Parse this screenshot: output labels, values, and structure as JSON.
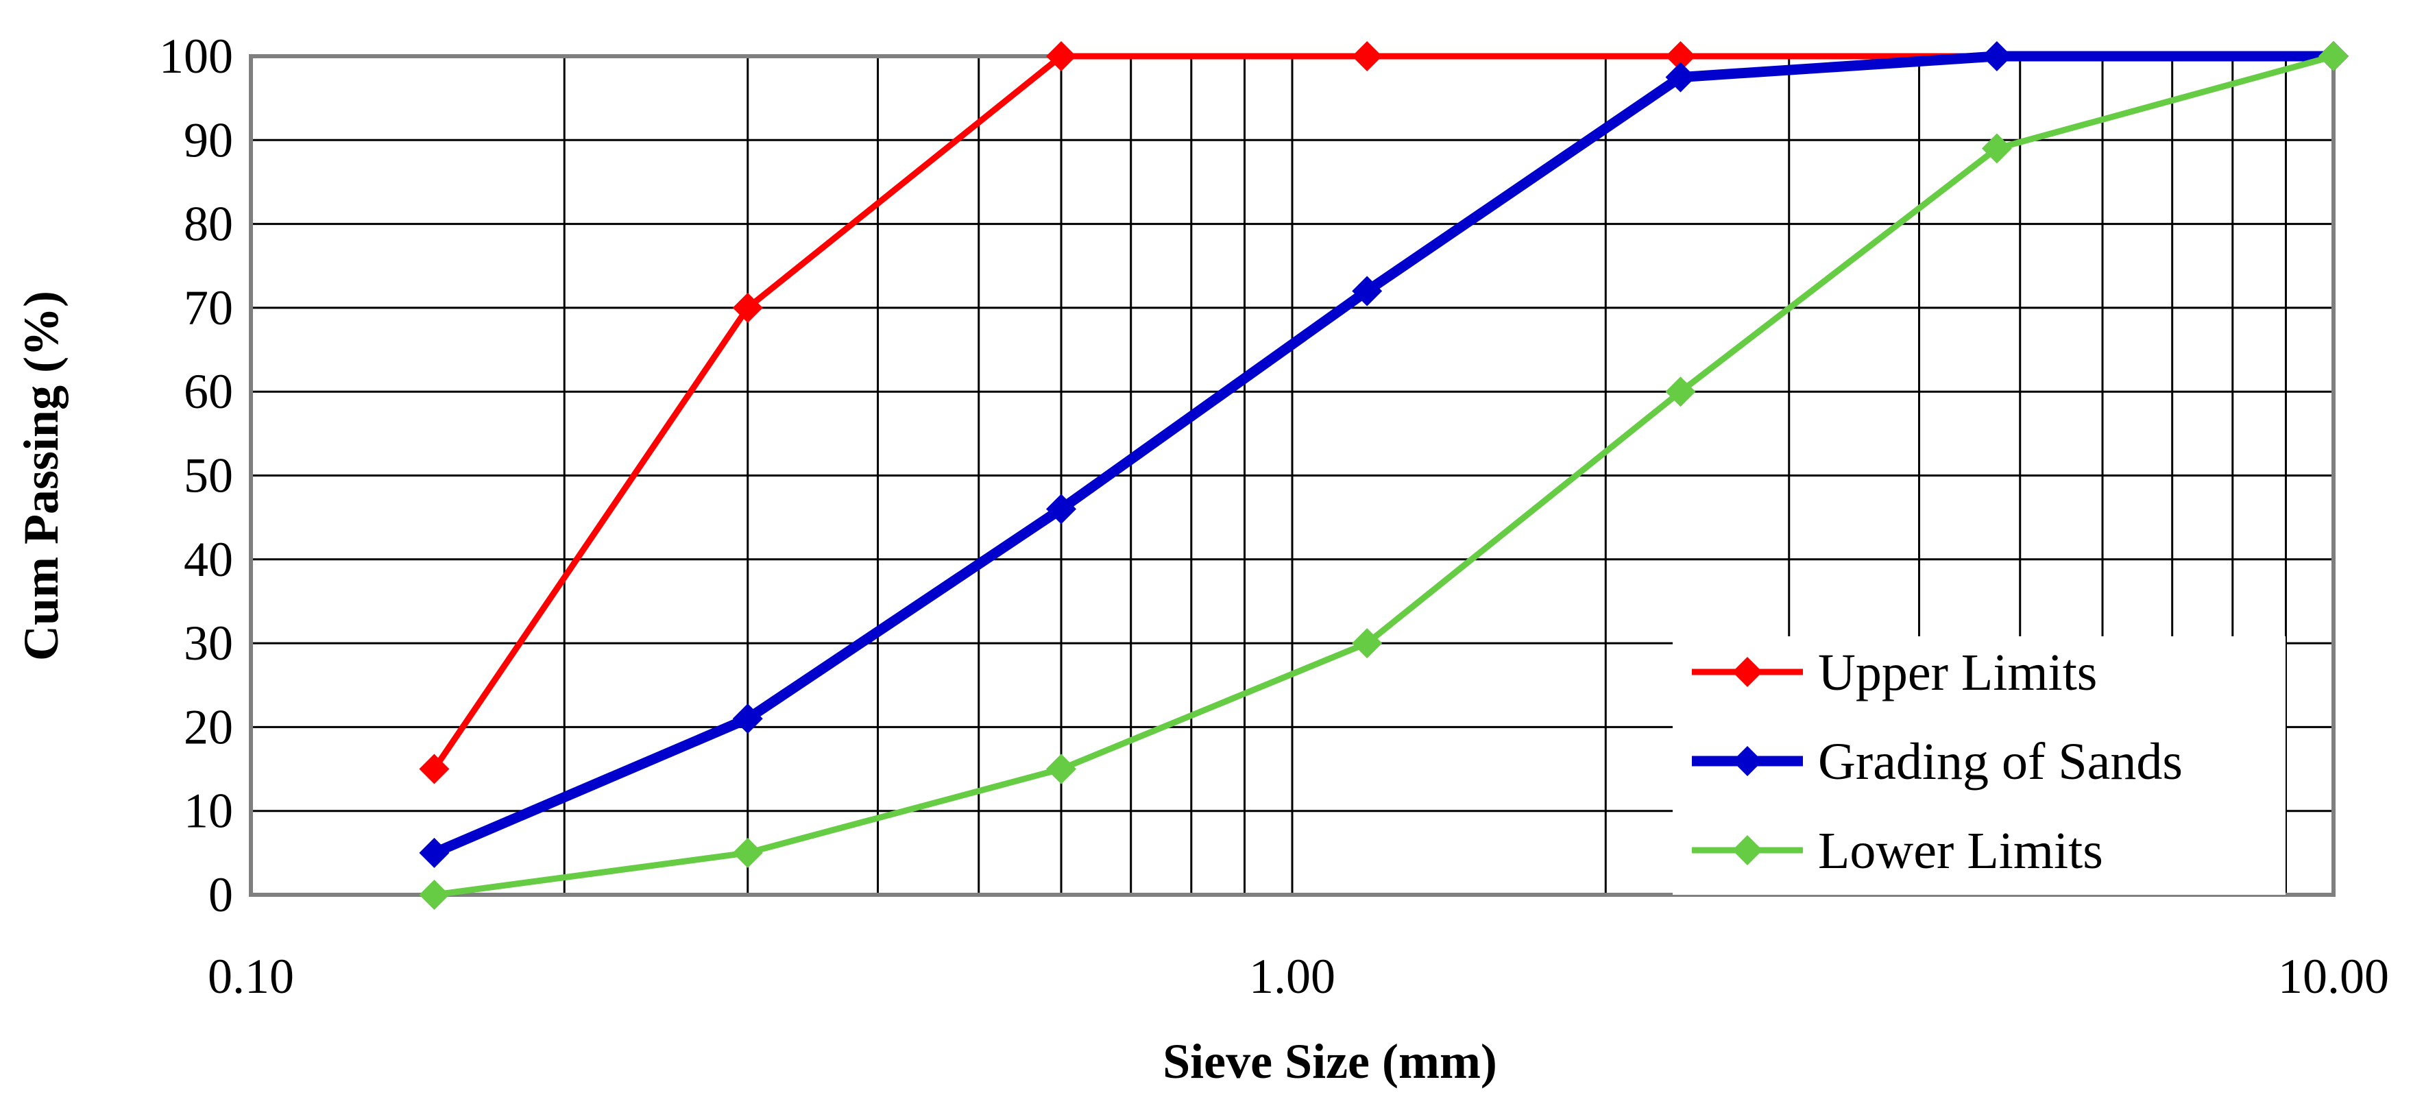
{
  "chart_data": {
    "type": "line",
    "xlabel": "Sieve Size (mm)",
    "ylabel": "Cum Passing (%)",
    "xscale": "log",
    "xlim": [
      0.1,
      10.0
    ],
    "ylim": [
      0,
      100
    ],
    "x_ticks": [
      "0.10",
      "1.00",
      "10.00"
    ],
    "y_ticks": [
      "0",
      "10",
      "20",
      "30",
      "40",
      "50",
      "60",
      "70",
      "80",
      "90",
      "100"
    ],
    "grid": true,
    "legend_position": "bottom-right",
    "series": [
      {
        "name": "Upper Limits",
        "color": "#FF0000",
        "marker": "diamond",
        "x": [
          0.15,
          0.3,
          0.6,
          1.18,
          2.36,
          10.0
        ],
        "y": [
          15,
          70,
          100,
          100,
          100,
          100
        ]
      },
      {
        "name": "Grading of Sands",
        "color": "#0000CC",
        "marker": "diamond",
        "x": [
          0.15,
          0.3,
          0.6,
          1.18,
          2.36,
          4.75,
          10.0
        ],
        "y": [
          5,
          21,
          46,
          72,
          97.5,
          100,
          100
        ]
      },
      {
        "name": "Lower Limits",
        "color": "#66CC44",
        "marker": "diamond",
        "x": [
          0.15,
          0.3,
          0.6,
          1.18,
          2.36,
          4.75,
          10.0
        ],
        "y": [
          0,
          5,
          15,
          30,
          60,
          89,
          100
        ]
      }
    ]
  }
}
